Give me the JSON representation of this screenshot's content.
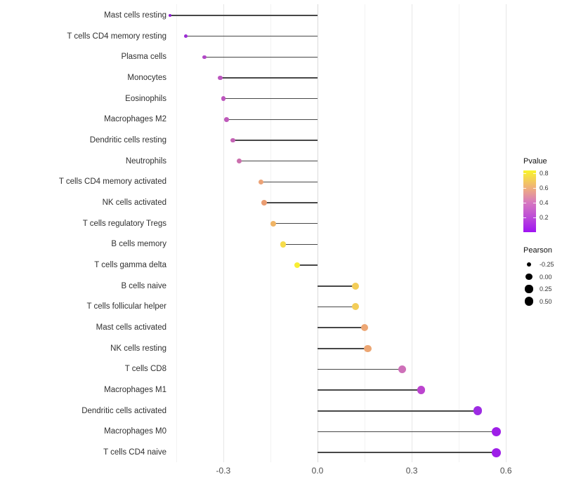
{
  "chart_data": {
    "type": "scatter",
    "subtype": "lollipop",
    "title": "",
    "xlabel": "",
    "ylabel": "",
    "categories": [
      "Mast cells resting",
      "T cells CD4 memory resting",
      "Plasma cells",
      "Monocytes",
      "Eosinophils",
      "Macrophages M2",
      "Dendritic cells resting",
      "Neutrophils",
      "T cells CD4 memory activated",
      "NK cells activated",
      "T cells regulatory  Tregs",
      "B cells memory",
      "T cells gamma delta",
      "B cells naive",
      "T cells follicular helper",
      "Mast cells activated",
      "NK cells resting",
      "T cells CD8",
      "Macrophages M1",
      "Dendritic cells activated",
      "Macrophages M0",
      "T cells CD4 naive"
    ],
    "series": [
      {
        "name": "Pearson",
        "values": [
          -0.47,
          -0.42,
          -0.36,
          -0.31,
          -0.3,
          -0.29,
          -0.27,
          -0.25,
          -0.18,
          -0.17,
          -0.14,
          -0.11,
          -0.065,
          0.12,
          0.12,
          0.15,
          0.16,
          0.27,
          0.33,
          0.51,
          0.57,
          0.57
        ]
      }
    ],
    "pvalue_estimates": [
      0.05,
      0.1,
      0.22,
      0.27,
      0.28,
      0.3,
      0.33,
      0.37,
      0.54,
      0.52,
      0.6,
      0.7,
      0.78,
      0.66,
      0.66,
      0.55,
      0.55,
      0.37,
      0.27,
      0.12,
      0.07,
      0.07
    ],
    "point_colors": [
      "#8E1BD2",
      "#9C2DD4",
      "#B148C6",
      "#BC55BF",
      "#BD55BE",
      "#BF5ABB",
      "#C463B5",
      "#CB6FAD",
      "#ECA276",
      "#EA9D72",
      "#F0B465",
      "#F6DC4B",
      "#F8EE33",
      "#F3CD58",
      "#F3CD58",
      "#EDA775",
      "#ECA673",
      "#CE70B9",
      "#BC44CF",
      "#9D2BE3",
      "#9E1FE8",
      "#9E1FE8"
    ],
    "x_tick_labels": [
      "-0.3",
      "0.0",
      "0.3",
      "0.6"
    ],
    "x_tick_values": [
      -0.3,
      0.0,
      0.3,
      0.6
    ],
    "x_minor_tick_values": [
      -0.45,
      -0.15,
      0.15,
      0.45
    ],
    "xlim": [
      -0.46,
      0.64
    ],
    "grid": true,
    "legend_position": "right"
  },
  "legend": {
    "pvalue_title": "Pvalue",
    "pvalue_ticks": [
      {
        "label": "0.8",
        "value": 0.8
      },
      {
        "label": "0.6",
        "value": 0.6
      },
      {
        "label": "0.4",
        "value": 0.4
      },
      {
        "label": "0.2",
        "value": 0.2
      }
    ],
    "pvalue_range": [
      0.0,
      0.84
    ],
    "pearson_title": "Pearson",
    "pearson_entries": [
      {
        "label": "-0.25",
        "value": -0.25
      },
      {
        "label": "0.00",
        "value": 0.0
      },
      {
        "label": "0.25",
        "value": 0.25
      },
      {
        "label": "0.50",
        "value": 0.5
      }
    ]
  },
  "colors": {
    "background": "#ffffff",
    "stem": "#474747",
    "gridline_major": "#e6e6e6",
    "gridline_minor": "#f2f2f2",
    "zero_line": "#dadada",
    "axis_text": "#4d4d4d",
    "colorbar_stops_bottom_to_top": [
      "#9F13F2",
      "#BC4BD8",
      "#D778C0",
      "#EFAE7E",
      "#F7E83A",
      "#F8F42A"
    ],
    "size_legend_dot": "#000000"
  }
}
